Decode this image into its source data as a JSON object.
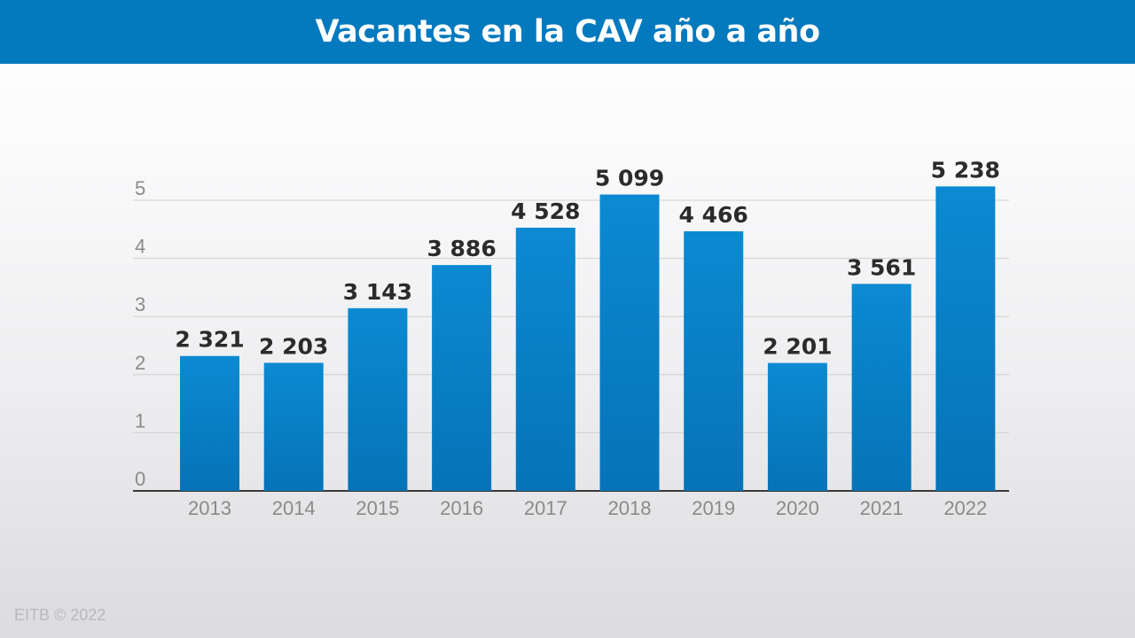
{
  "header": {
    "title": "Vacantes en la CAV año a año"
  },
  "chart_data": {
    "type": "bar",
    "title": "Vacantes en la CAV año a año",
    "xlabel": "",
    "ylabel": "",
    "categories": [
      "2013",
      "2014",
      "2015",
      "2016",
      "2017",
      "2018",
      "2019",
      "2020",
      "2021",
      "2022"
    ],
    "values": [
      2321,
      2203,
      3143,
      3886,
      4528,
      5099,
      4466,
      2201,
      3561,
      5238
    ],
    "value_labels": [
      "2 321",
      "2 203",
      "3 143",
      "3 886",
      "4 528",
      "5 099",
      "4 466",
      "2 201",
      "3 561",
      "5 238"
    ],
    "y_ticks": [
      0,
      1000,
      2000,
      3000,
      4000,
      5000
    ],
    "y_tick_labels": [
      "0",
      "1",
      "2",
      "3",
      "4",
      "5"
    ],
    "ylim": [
      0,
      5000
    ],
    "grid": true,
    "bar_color": "#0a84cc",
    "legend": "none"
  },
  "footer": {
    "credit": "EITB © 2022"
  }
}
